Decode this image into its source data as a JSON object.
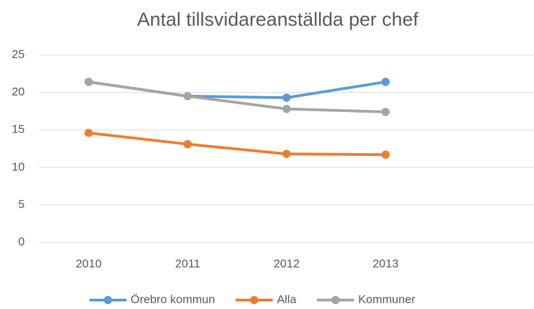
{
  "chart_data": {
    "type": "line",
    "title": "Antal tillsvidareanställda per chef",
    "categories": [
      "2010",
      "2011",
      "2012",
      "2013",
      null
    ],
    "series": [
      {
        "name": "Örebro kommun",
        "color": "#5b9bd5",
        "values": [
          21.4,
          19.5,
          19.3,
          21.4,
          null
        ]
      },
      {
        "name": "Alla",
        "color": "#ed7d31",
        "values": [
          14.6,
          13.1,
          11.8,
          11.7,
          null
        ]
      },
      {
        "name": "Kommuner",
        "color": "#a5a5a5",
        "values": [
          21.4,
          19.5,
          17.8,
          17.4,
          null
        ]
      }
    ],
    "ylim": [
      0,
      25
    ],
    "yticks": [
      0,
      5,
      10,
      15,
      20,
      25
    ],
    "grid": true,
    "legend": "bottom"
  }
}
